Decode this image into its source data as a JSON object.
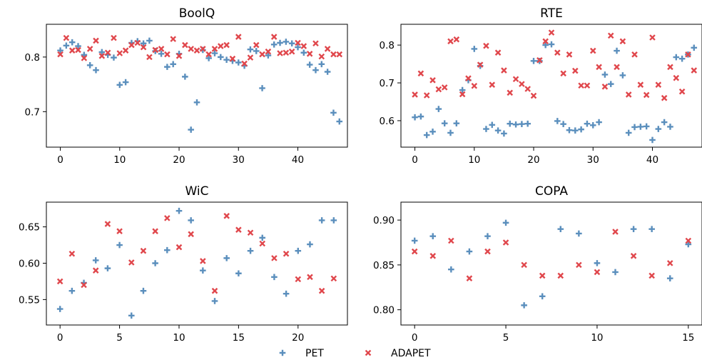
{
  "legend": {
    "placement": "bottom-center",
    "entries": [
      {
        "name": "PET",
        "marker": "plus",
        "color": "#5b8fbd"
      },
      {
        "name": "ADAPET",
        "marker": "x",
        "color": "#e0474c"
      }
    ]
  },
  "chart_data": [
    {
      "type": "scatter",
      "title": "BoolQ",
      "xlabel": "",
      "ylabel": "",
      "xlim": [
        -2.35,
        48.35
      ],
      "ylim": [
        0.635,
        0.86
      ],
      "xticks": [
        0,
        10,
        20,
        30,
        40
      ],
      "yticks": [
        0.7,
        0.8
      ],
      "ytick_labels": [
        "0.7",
        "0.8"
      ],
      "grid": false,
      "series": [
        {
          "name": "PET",
          "x": [
            0,
            1,
            2,
            3,
            4,
            5,
            6,
            7,
            8,
            9,
            10,
            11,
            12,
            13,
            14,
            15,
            16,
            17,
            18,
            19,
            20,
            21,
            22,
            23,
            24,
            25,
            26,
            27,
            28,
            29,
            30,
            31,
            32,
            33,
            34,
            35,
            36,
            37,
            38,
            39,
            40,
            41,
            42,
            43,
            44,
            45,
            46,
            47
          ],
          "y": [
            0.812,
            0.821,
            0.827,
            0.82,
            0.804,
            0.785,
            0.776,
            0.809,
            0.804,
            0.799,
            0.749,
            0.754,
            0.826,
            0.829,
            0.825,
            0.83,
            0.811,
            0.806,
            0.782,
            0.787,
            0.806,
            0.764,
            0.667,
            0.717,
            0.813,
            0.798,
            0.807,
            0.8,
            0.795,
            0.793,
            0.79,
            0.784,
            0.814,
            0.811,
            0.743,
            0.803,
            0.823,
            0.826,
            0.828,
            0.825,
            0.818,
            0.808,
            0.786,
            0.776,
            0.787,
            0.773,
            0.698,
            0.682
          ]
        },
        {
          "name": "ADAPET",
          "x": [
            0,
            1,
            2,
            3,
            4,
            5,
            6,
            7,
            8,
            9,
            10,
            11,
            12,
            13,
            14,
            15,
            16,
            17,
            18,
            19,
            20,
            21,
            22,
            23,
            24,
            25,
            26,
            27,
            28,
            29,
            30,
            31,
            32,
            33,
            34,
            35,
            36,
            37,
            38,
            39,
            40,
            41,
            42,
            43,
            44,
            45,
            46,
            47
          ],
          "y": [
            0.805,
            0.835,
            0.812,
            0.813,
            0.798,
            0.815,
            0.83,
            0.802,
            0.808,
            0.835,
            0.807,
            0.812,
            0.822,
            0.826,
            0.818,
            0.8,
            0.813,
            0.815,
            0.805,
            0.833,
            0.802,
            0.822,
            0.815,
            0.812,
            0.815,
            0.805,
            0.815,
            0.82,
            0.822,
            0.797,
            0.837,
            0.788,
            0.799,
            0.822,
            0.805,
            0.81,
            0.837,
            0.807,
            0.808,
            0.81,
            0.826,
            0.82,
            0.806,
            0.825,
            0.801,
            0.815,
            0.805,
            0.805
          ]
        }
      ]
    },
    {
      "type": "scatter",
      "title": "RTE",
      "xlabel": "",
      "ylabel": "",
      "xlim": [
        -2.35,
        48.35
      ],
      "ylim": [
        0.53,
        0.855
      ],
      "xticks": [
        0,
        10,
        20,
        30,
        40
      ],
      "yticks": [
        0.6,
        0.7,
        0.8
      ],
      "ytick_labels": [
        "0.6",
        "0.7",
        "0.8"
      ],
      "grid": false,
      "series": [
        {
          "name": "PET",
          "x": [
            0,
            1,
            2,
            3,
            4,
            5,
            6,
            7,
            8,
            9,
            10,
            11,
            12,
            13,
            14,
            15,
            16,
            17,
            18,
            19,
            20,
            21,
            22,
            23,
            24,
            25,
            26,
            27,
            28,
            29,
            30,
            31,
            32,
            33,
            34,
            35,
            36,
            37,
            38,
            39,
            40,
            41,
            42,
            43,
            44,
            45,
            46,
            47
          ],
          "y": [
            0.609,
            0.611,
            0.562,
            0.571,
            0.631,
            0.593,
            0.568,
            0.593,
            0.681,
            0.707,
            0.79,
            0.745,
            0.578,
            0.589,
            0.574,
            0.566,
            0.592,
            0.59,
            0.591,
            0.592,
            0.758,
            0.758,
            0.8,
            0.802,
            0.599,
            0.591,
            0.575,
            0.574,
            0.577,
            0.592,
            0.588,
            0.596,
            0.722,
            0.697,
            0.785,
            0.72,
            0.568,
            0.583,
            0.584,
            0.585,
            0.549,
            0.578,
            0.596,
            0.584,
            0.768,
            0.764,
            0.775,
            0.793
          ]
        },
        {
          "name": "ADAPET",
          "x": [
            0,
            1,
            2,
            3,
            4,
            5,
            6,
            7,
            8,
            9,
            10,
            11,
            12,
            13,
            14,
            15,
            16,
            17,
            18,
            19,
            20,
            21,
            22,
            23,
            24,
            25,
            26,
            27,
            28,
            29,
            30,
            31,
            32,
            33,
            34,
            35,
            36,
            37,
            38,
            39,
            40,
            41,
            42,
            43,
            44,
            45,
            46,
            47
          ],
          "y": [
            0.669,
            0.725,
            0.667,
            0.707,
            0.683,
            0.688,
            0.81,
            0.815,
            0.67,
            0.712,
            0.692,
            0.748,
            0.798,
            0.695,
            0.78,
            0.733,
            0.674,
            0.71,
            0.697,
            0.684,
            0.666,
            0.76,
            0.81,
            0.833,
            0.78,
            0.725,
            0.775,
            0.732,
            0.693,
            0.693,
            0.785,
            0.742,
            0.69,
            0.825,
            0.742,
            0.81,
            0.669,
            0.775,
            0.695,
            0.668,
            0.82,
            0.695,
            0.66,
            0.742,
            0.713,
            0.677,
            0.775,
            0.733
          ]
        }
      ]
    },
    {
      "type": "scatter",
      "title": "WiC",
      "xlabel": "",
      "ylabel": "",
      "xlim": [
        -1.15,
        24.15
      ],
      "ylim": [
        0.515,
        0.684
      ],
      "xticks": [
        0,
        5,
        10,
        15,
        20
      ],
      "yticks": [
        0.55,
        0.6,
        0.65
      ],
      "ytick_labels": [
        "0.55",
        "0.60",
        "0.65"
      ],
      "grid": false,
      "series": [
        {
          "name": "PET",
          "x": [
            0,
            1,
            2,
            3,
            4,
            5,
            6,
            7,
            8,
            9,
            10,
            11,
            12,
            13,
            14,
            15,
            16,
            17,
            18,
            19,
            20,
            21,
            22,
            23
          ],
          "y": [
            0.537,
            0.562,
            0.573,
            0.604,
            0.593,
            0.625,
            0.528,
            0.562,
            0.6,
            0.618,
            0.672,
            0.659,
            0.59,
            0.548,
            0.607,
            0.586,
            0.617,
            0.635,
            0.581,
            0.558,
            0.617,
            0.626,
            0.659,
            0.659
          ]
        },
        {
          "name": "ADAPET",
          "x": [
            0,
            1,
            2,
            3,
            4,
            5,
            6,
            7,
            8,
            9,
            10,
            11,
            12,
            13,
            14,
            15,
            16,
            17,
            18,
            19,
            20,
            21,
            22,
            23
          ],
          "y": [
            0.575,
            0.613,
            0.57,
            0.59,
            0.654,
            0.644,
            0.601,
            0.617,
            0.644,
            0.662,
            0.622,
            0.64,
            0.603,
            0.562,
            0.665,
            0.646,
            0.642,
            0.627,
            0.607,
            0.613,
            0.578,
            0.581,
            0.562,
            0.579
          ]
        }
      ]
    },
    {
      "type": "scatter",
      "title": "COPA",
      "xlabel": "",
      "ylabel": "",
      "xlim": [
        -0.75,
        15.75
      ],
      "ylim": [
        0.783,
        0.92
      ],
      "xticks": [
        0,
        5,
        10,
        15
      ],
      "yticks": [
        0.8,
        0.85,
        0.9
      ],
      "ytick_labels": [
        "0.80",
        "0.85",
        "0.90"
      ],
      "grid": false,
      "series": [
        {
          "name": "PET",
          "x": [
            0,
            1,
            2,
            3,
            4,
            5,
            6,
            7,
            8,
            9,
            10,
            11,
            12,
            13,
            14,
            15
          ],
          "y": [
            0.877,
            0.882,
            0.845,
            0.865,
            0.882,
            0.897,
            0.805,
            0.815,
            0.89,
            0.885,
            0.852,
            0.842,
            0.89,
            0.89,
            0.835,
            0.873
          ]
        },
        {
          "name": "ADAPET",
          "x": [
            0,
            1,
            2,
            3,
            4,
            5,
            6,
            7,
            8,
            9,
            10,
            11,
            12,
            13,
            14,
            15
          ],
          "y": [
            0.865,
            0.86,
            0.877,
            0.835,
            0.865,
            0.875,
            0.85,
            0.838,
            0.838,
            0.85,
            0.842,
            0.887,
            0.86,
            0.838,
            0.852,
            0.877
          ]
        }
      ]
    }
  ]
}
